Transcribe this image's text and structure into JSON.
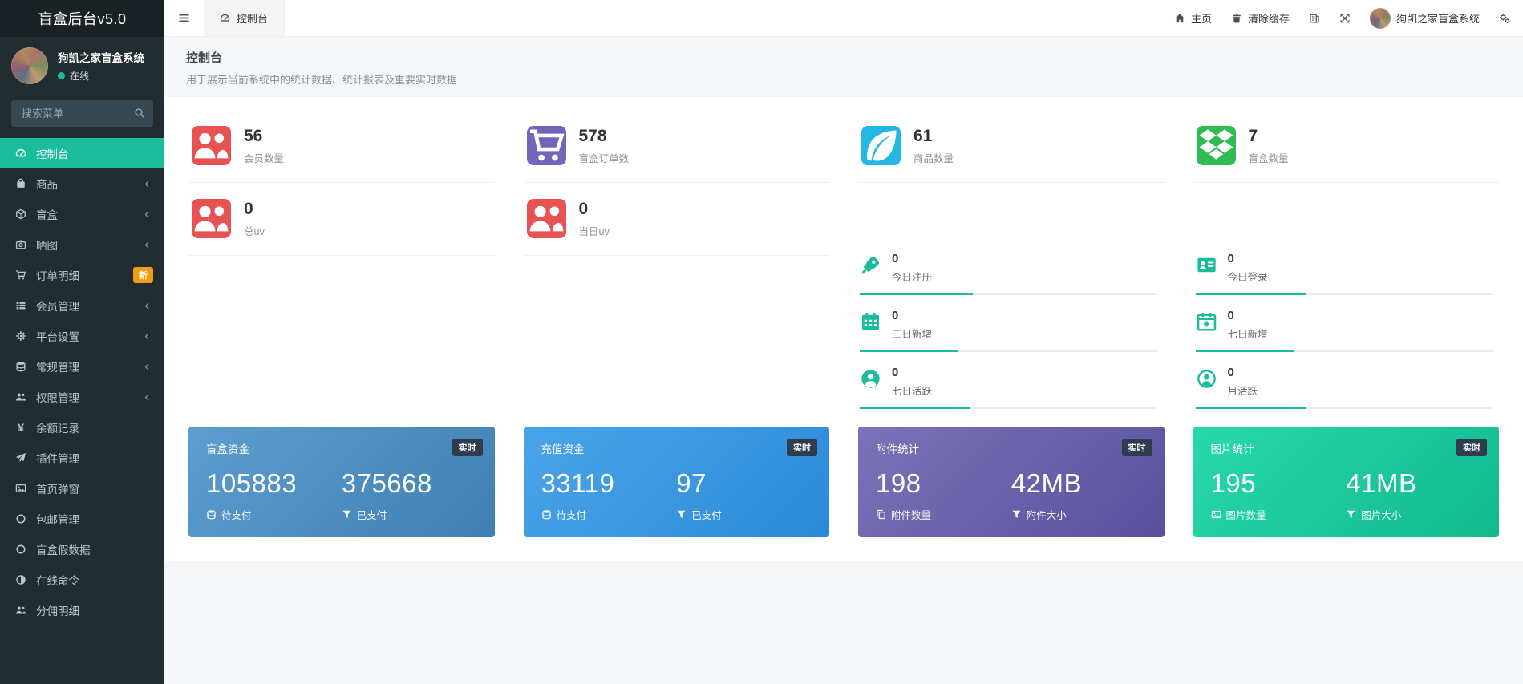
{
  "app": {
    "title": "盲盒后台v5.0"
  },
  "colors": {
    "accent": "#1abc9c",
    "sidebar_bg": "#222d32",
    "logo_bg": "#1a2226",
    "badge_orange": "#f39c12",
    "badge_dark": "#2e3c4e"
  },
  "sidebar": {
    "user": {
      "name": "狗凯之家盲盒系统",
      "status": "在线"
    },
    "search_placeholder": "搜索菜单",
    "items": [
      {
        "key": "dashboard",
        "label": "控制台",
        "icon": "tachometer",
        "active": true
      },
      {
        "key": "goods",
        "label": "商品",
        "icon": "bag",
        "arrow": true
      },
      {
        "key": "blindbox",
        "label": "盲盒",
        "icon": "cube",
        "arrow": true
      },
      {
        "key": "photos",
        "label": "晒图",
        "icon": "camera",
        "arrow": true
      },
      {
        "key": "orders",
        "label": "订单明细",
        "icon": "cart",
        "badge": "新"
      },
      {
        "key": "members",
        "label": "会员管理",
        "icon": "thlist",
        "arrow": true
      },
      {
        "key": "platform",
        "label": "平台设置",
        "icon": "gear",
        "arrow": true
      },
      {
        "key": "general",
        "label": "常规管理",
        "icon": "database",
        "arrow": true
      },
      {
        "key": "permission",
        "label": "权限管理",
        "icon": "group",
        "arrow": true
      },
      {
        "key": "balance",
        "label": "余额记录",
        "icon": "yen"
      },
      {
        "key": "plugins",
        "label": "插件管理",
        "icon": "send"
      },
      {
        "key": "popup",
        "label": "首页弹窗",
        "icon": "image"
      },
      {
        "key": "shipping",
        "label": "包邮管理",
        "icon": "circleo"
      },
      {
        "key": "fakedata",
        "label": "盲盒假数据",
        "icon": "circleo"
      },
      {
        "key": "command",
        "label": "在线命令",
        "icon": "adjust"
      },
      {
        "key": "commission",
        "label": "分佣明细",
        "icon": "group"
      }
    ]
  },
  "topbar": {
    "tab": "控制台",
    "home": "主页",
    "clear_cache": "清除缓存",
    "username": "狗凯之家盲盒系统"
  },
  "page": {
    "title": "控制台",
    "subtitle": "用于展示当前系统中的统计数据、统计报表及重要实时数据"
  },
  "stats": [
    {
      "key": "members",
      "value": "56",
      "label": "会员数量",
      "icon": "group",
      "color": "#e95252"
    },
    {
      "key": "box_orders",
      "value": "578",
      "label": "盲盒订单数",
      "icon": "cart",
      "color": "#7266ba"
    },
    {
      "key": "goods",
      "value": "61",
      "label": "商品数量",
      "icon": "leaf",
      "color": "#23b7e5"
    },
    {
      "key": "boxes",
      "value": "7",
      "label": "盲盒数量",
      "icon": "dropbox",
      "color": "#2fbc52"
    },
    {
      "key": "total_uv",
      "value": "0",
      "label": "总uv",
      "icon": "group",
      "color": "#e95252"
    },
    {
      "key": "daily_uv",
      "value": "0",
      "label": "当日uv",
      "icon": "group",
      "color": "#e95252"
    }
  ],
  "mini_stats": [
    {
      "key": "today_register",
      "value": "0",
      "label": "今日注册",
      "icon": "rocket",
      "progress": 38
    },
    {
      "key": "today_login",
      "value": "0",
      "label": "今日登录",
      "icon": "idcard",
      "progress": 37
    },
    {
      "key": "three_day_new",
      "value": "0",
      "label": "三日新增",
      "icon": "calendar",
      "progress": 33
    },
    {
      "key": "seven_day_new",
      "value": "0",
      "label": "七日新增",
      "icon": "calendarplus",
      "progress": 33
    },
    {
      "key": "seven_day_active",
      "value": "0",
      "label": "七日活跃",
      "icon": "usercircle",
      "progress": 37
    },
    {
      "key": "month_active",
      "value": "0",
      "label": "月活跃",
      "icon": "usercircleo",
      "progress": 37
    }
  ],
  "gradient_cards": [
    {
      "key": "box_funds",
      "title": "盲盒资金",
      "badge": "实时",
      "from": "#5d9ed0",
      "to": "#3f7fb2",
      "left_value": "105883",
      "left_label": "待支付",
      "left_icon": "database",
      "right_value": "375668",
      "right_label": "已支付",
      "right_icon": "filter"
    },
    {
      "key": "recharge_funds",
      "title": "充值资金",
      "badge": "实时",
      "from": "#4aa4e8",
      "to": "#2b8ad8",
      "left_value": "33119",
      "left_label": "待支付",
      "left_icon": "database",
      "right_value": "97",
      "right_label": "已支付",
      "right_icon": "filter"
    },
    {
      "key": "attachments",
      "title": "附件统计",
      "badge": "实时",
      "from": "#7b74b8",
      "to": "#57509e",
      "left_value": "198",
      "left_label": "附件数量",
      "left_icon": "copy",
      "right_value": "42MB",
      "right_label": "附件大小",
      "right_icon": "filter"
    },
    {
      "key": "images",
      "title": "图片统计",
      "badge": "实时",
      "from": "#28d9ac",
      "to": "#11b88d",
      "left_value": "195",
      "left_label": "图片数量",
      "left_icon": "image",
      "right_value": "41MB",
      "right_label": "图片大小",
      "right_icon": "filter"
    }
  ]
}
